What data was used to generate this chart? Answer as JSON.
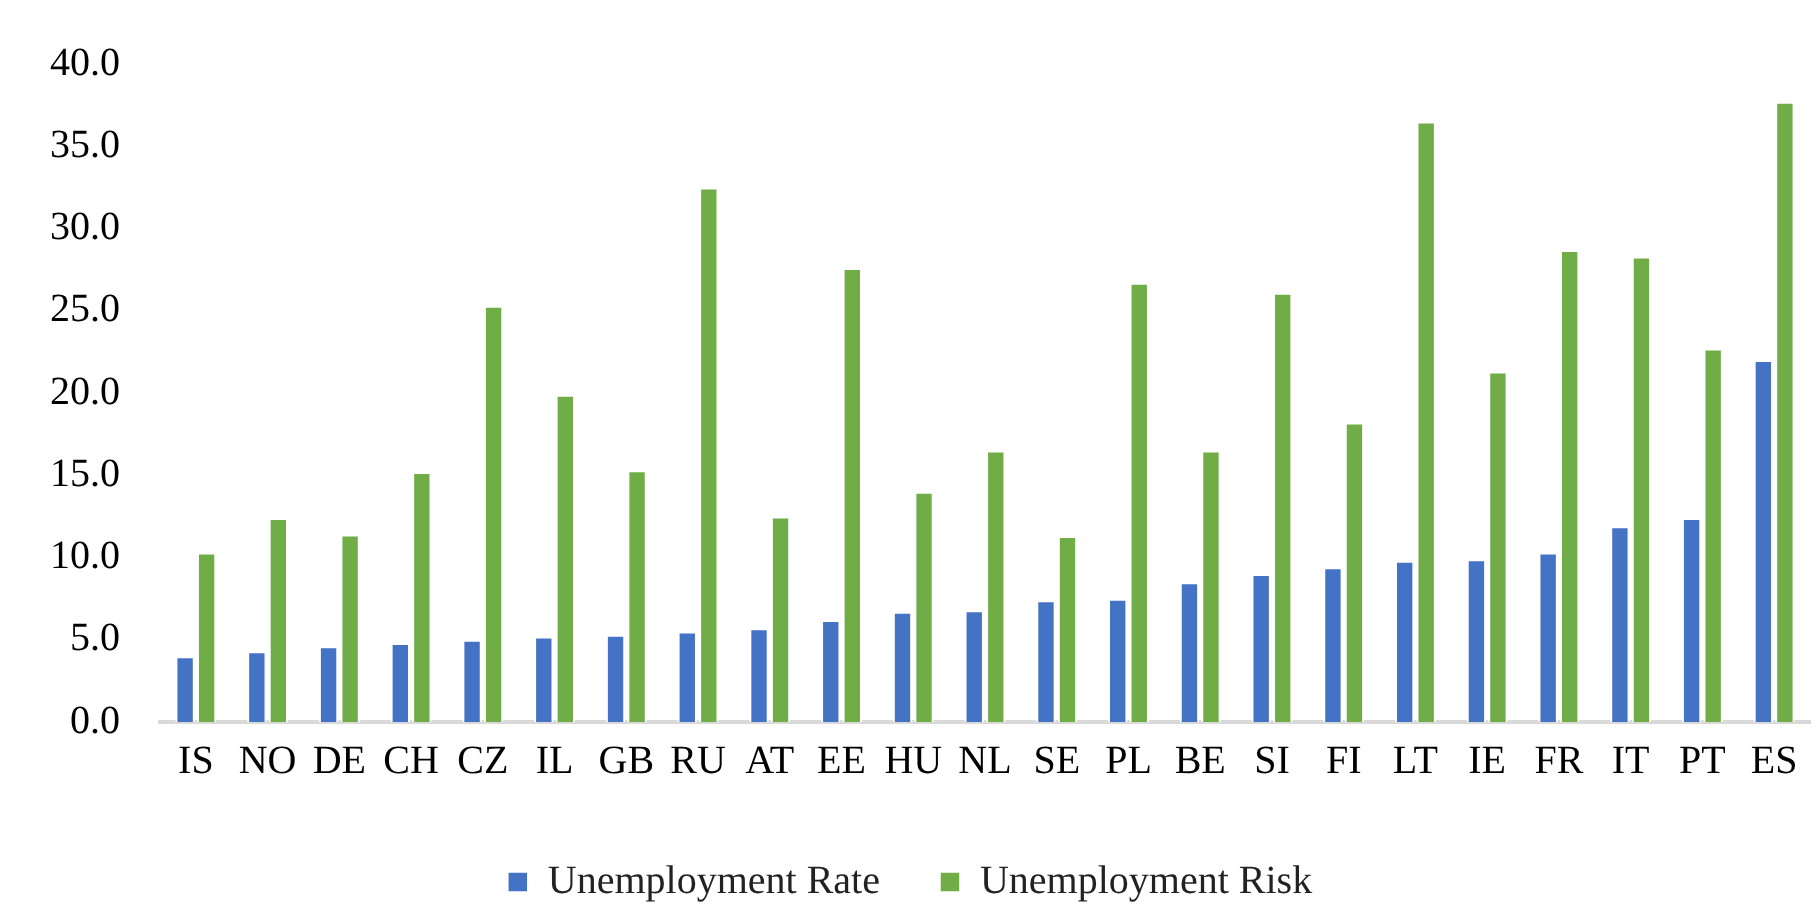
{
  "chart_data": {
    "type": "bar",
    "categories": [
      "IS",
      "NO",
      "DE",
      "CH",
      "CZ",
      "IL",
      "GB",
      "RU",
      "AT",
      "EE",
      "HU",
      "NL",
      "SE",
      "PL",
      "BE",
      "SI",
      "FI",
      "LT",
      "IE",
      "FR",
      "IT",
      "PT",
      "ES"
    ],
    "series": [
      {
        "name": "Unemployment Rate",
        "color": "#4472c4",
        "values": [
          4.0,
          4.3,
          4.6,
          4.8,
          5.0,
          5.2,
          5.3,
          5.5,
          5.7,
          6.2,
          6.7,
          6.8,
          7.4,
          7.5,
          8.5,
          9.0,
          9.4,
          9.8,
          9.9,
          10.3,
          11.9,
          12.4,
          22.0
        ]
      },
      {
        "name": "Unemployment Risk",
        "color": "#70ad47",
        "values": [
          10.3,
          12.4,
          11.4,
          15.2,
          25.3,
          19.9,
          15.3,
          32.5,
          12.5,
          27.6,
          14.0,
          16.5,
          11.3,
          26.7,
          16.5,
          26.1,
          18.2,
          36.5,
          21.3,
          28.7,
          28.3,
          22.7,
          37.7
        ]
      }
    ],
    "ylim": [
      0,
      40
    ],
    "yticks": [
      {
        "value": 0,
        "label": "0.0"
      },
      {
        "value": 5,
        "label": "5.0"
      },
      {
        "value": 10,
        "label": "10.0"
      },
      {
        "value": 15,
        "label": "15.0"
      },
      {
        "value": 20,
        "label": "20.0"
      },
      {
        "value": 25,
        "label": "25.0"
      },
      {
        "value": 30,
        "label": "30.0"
      },
      {
        "value": 35,
        "label": "35.0"
      },
      {
        "value": 40,
        "label": "40.0"
      }
    ],
    "grid": false,
    "legend": "bottom"
  }
}
